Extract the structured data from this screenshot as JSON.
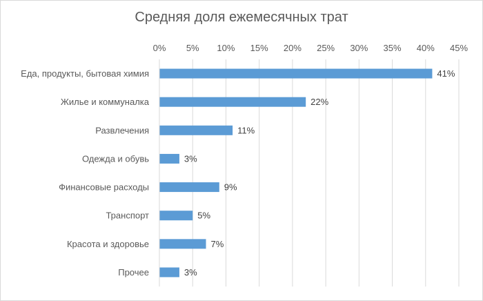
{
  "chart_data": {
    "type": "bar",
    "orientation": "horizontal",
    "title": "Средняя доля ежемесячных трат",
    "categories": [
      "Еда, продукты, бытовая химия",
      "Жилье и коммуналка",
      "Развлечения",
      "Одежда и обувь",
      "Финансовые расходы",
      "Транспорт",
      "Красота и здоровье",
      "Прочее"
    ],
    "values": [
      41,
      22,
      11,
      3,
      9,
      5,
      7,
      3
    ],
    "data_labels": [
      "41%",
      "22%",
      "11%",
      "3%",
      "9%",
      "5%",
      "7%",
      "3%"
    ],
    "x_ticks": [
      "0%",
      "5%",
      "10%",
      "15%",
      "20%",
      "25%",
      "30%",
      "35%",
      "40%",
      "45%"
    ],
    "xlim": [
      0,
      45
    ],
    "x_axis_position": "top",
    "grid": true,
    "bar_color": "#5b9bd5",
    "gridline_color": "#d9d9d9",
    "text_color": "#595959",
    "legend": "none"
  }
}
